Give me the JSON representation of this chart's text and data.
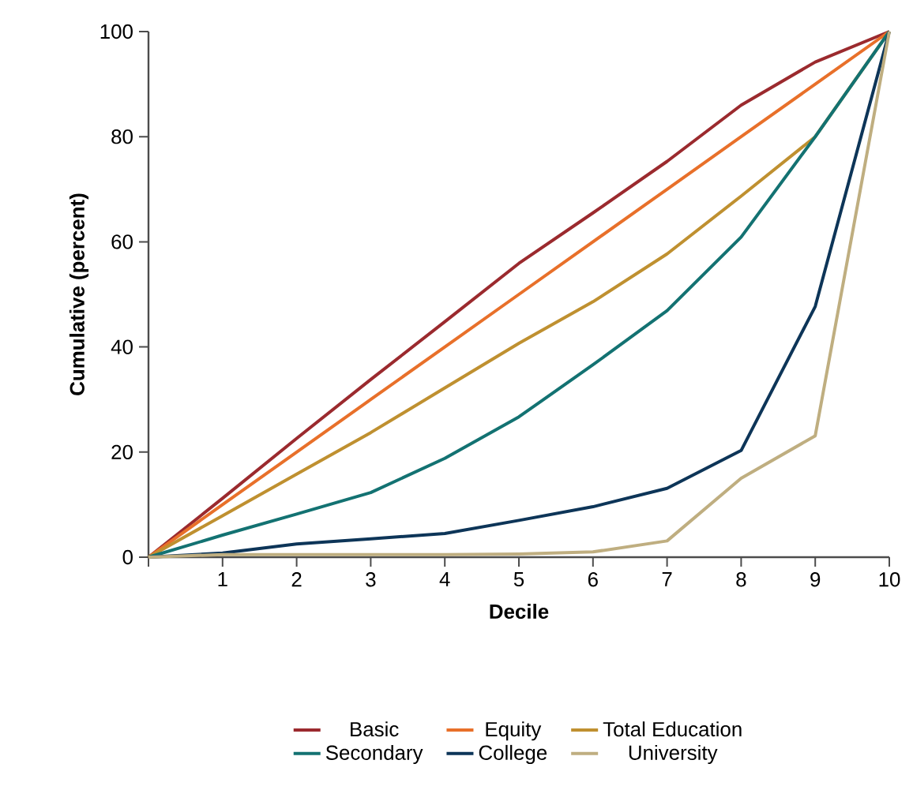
{
  "chart_data": {
    "type": "line",
    "xlabel": "Decile",
    "ylabel": "Cumulative (percent)",
    "x": [
      0,
      1,
      2,
      3,
      4,
      5,
      6,
      7,
      8,
      9,
      10
    ],
    "xlim": [
      0,
      10
    ],
    "ylim": [
      0,
      100
    ],
    "xticks": [
      {
        "value": 0,
        "label": null
      },
      1,
      2,
      3,
      4,
      5,
      6,
      7,
      8,
      9,
      10
    ],
    "yticks": [
      0,
      20,
      40,
      60,
      80,
      100
    ],
    "grid": false,
    "legend": "bottom",
    "marker": "none",
    "line_style": "solid",
    "series": [
      {
        "name": "Basic",
        "color": "#9b2a2e",
        "values": [
          0,
          11.2,
          22.6,
          33.8,
          44.8,
          55.9,
          65.5,
          75.3,
          86.0,
          94.2,
          100
        ]
      },
      {
        "name": "Equity",
        "color": "#e8702a",
        "values": [
          0,
          10,
          20,
          30,
          40,
          50,
          60,
          70,
          80,
          90,
          100
        ]
      },
      {
        "name": "Total Education",
        "color": "#bf9030",
        "values": [
          0,
          7.9,
          15.8,
          23.7,
          32.2,
          40.7,
          48.6,
          57.7,
          68.7,
          80.0,
          100
        ]
      },
      {
        "name": "Secondary",
        "color": "#137272",
        "values": [
          0,
          4.2,
          8.2,
          12.3,
          18.8,
          26.7,
          36.6,
          46.9,
          60.9,
          80.0,
          100
        ]
      },
      {
        "name": "College",
        "color": "#0d3558",
        "values": [
          0,
          0.8,
          2.5,
          3.5,
          4.5,
          7.0,
          9.6,
          13.1,
          20.3,
          47.7,
          100
        ]
      },
      {
        "name": "University",
        "color": "#bfae80",
        "values": [
          0,
          0.5,
          0.5,
          0.5,
          0.5,
          0.6,
          1.0,
          3.1,
          15.0,
          23.1,
          100
        ]
      }
    ]
  }
}
